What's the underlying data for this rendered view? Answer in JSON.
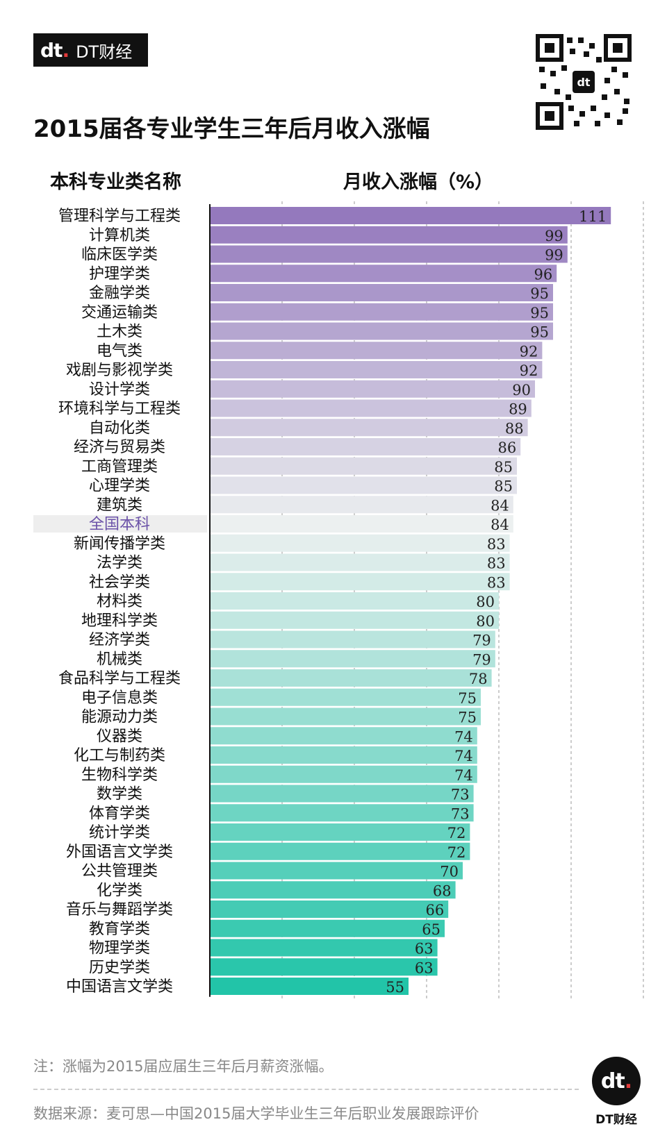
{
  "logo": {
    "mark": "dt",
    "text": "DT财经"
  },
  "title": "2015届各专业学生三年后月收入涨幅",
  "headers": {
    "category": "本科专业类名称",
    "value": "月收入涨幅（%）"
  },
  "note": "注：涨幅为2015届应届生三年后月薪资涨幅。",
  "source": "数据来源：麦可思—中国2015届大学毕业生三年后职业发展跟踪评价",
  "brand": {
    "mark": "dt",
    "text": "DT财经"
  },
  "colors": {
    "top": "#9479bd",
    "bottom": "#22c4a8",
    "highlight_label": "#6b52a8",
    "highlight_bg": "#eeeeee"
  },
  "chart_data": {
    "type": "bar",
    "orientation": "horizontal",
    "xlim": [
      0,
      120
    ],
    "grid": true,
    "highlight": "全国本科",
    "categories": [
      "管理科学与工程类",
      "计算机类",
      "临床医学类",
      "护理学类",
      "金融学类",
      "交通运输类",
      "土木类",
      "电气类",
      "戏剧与影视学类",
      "设计学类",
      "环境科学与工程类",
      "自动化类",
      "经济与贸易类",
      "工商管理类",
      "心理学类",
      "建筑类",
      "全国本科",
      "新闻传播学类",
      "法学类",
      "社会学类",
      "材料类",
      "地理科学类",
      "经济学类",
      "机械类",
      "食品科学与工程类",
      "电子信息类",
      "能源动力类",
      "仪器类",
      "化工与制药类",
      "生物科学类",
      "数学类",
      "体育学类",
      "统计学类",
      "外国语言文学类",
      "公共管理类",
      "化学类",
      "音乐与舞蹈学类",
      "教育学类",
      "物理学类",
      "历史学类",
      "中国语言文学类"
    ],
    "values": [
      111,
      99,
      99,
      96,
      95,
      95,
      95,
      92,
      92,
      90,
      89,
      88,
      86,
      85,
      85,
      84,
      84,
      83,
      83,
      83,
      80,
      80,
      79,
      79,
      78,
      75,
      75,
      74,
      74,
      74,
      73,
      73,
      72,
      72,
      70,
      68,
      66,
      65,
      63,
      63,
      55
    ]
  }
}
